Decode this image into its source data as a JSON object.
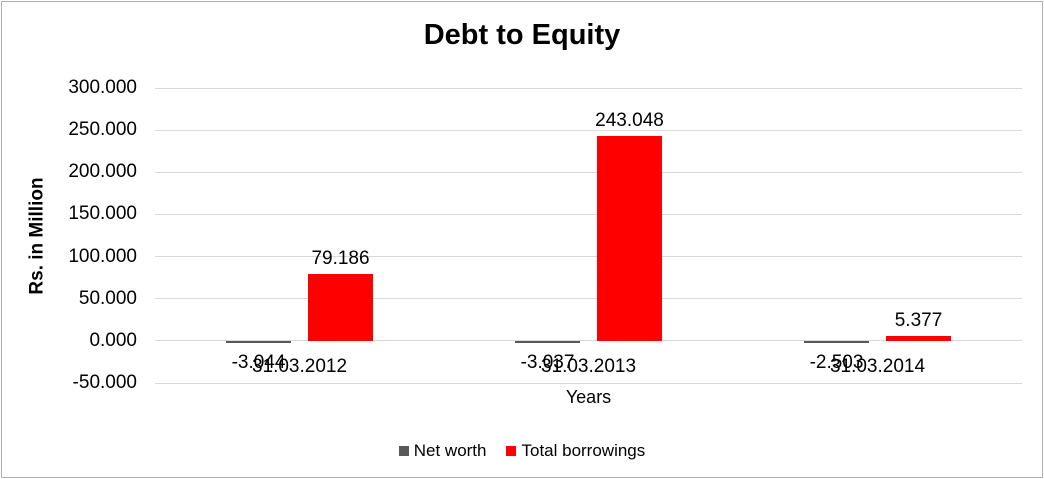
{
  "window": {
    "background": "#ffffff",
    "border_color": "#b0b0b0"
  },
  "chart_data": {
    "type": "bar",
    "title": "Debt to Equity",
    "xlabel": "Years",
    "ylabel": "Rs. in Million",
    "categories": [
      "31.03.2012",
      "31.03.2013",
      "31.03.2014"
    ],
    "series": [
      {
        "name": "Net worth",
        "color": "#595959",
        "values": [
          -3.044,
          -3.037,
          -2.503
        ],
        "labels": [
          "-3.044",
          "-3.037",
          "-2.503"
        ]
      },
      {
        "name": "Total borrowings",
        "color": "#ff0000",
        "values": [
          79.186,
          243.048,
          5.377
        ],
        "labels": [
          "79.186",
          "243.048",
          "5.377"
        ]
      }
    ],
    "ylim": [
      -50,
      300
    ],
    "yticks": [
      {
        "value": 300,
        "label": "300.000"
      },
      {
        "value": 250,
        "label": "250.000"
      },
      {
        "value": 200,
        "label": "200.000"
      },
      {
        "value": 150,
        "label": "150.000"
      },
      {
        "value": 100,
        "label": "100.000"
      },
      {
        "value": 50,
        "label": "50.000"
      },
      {
        "value": 0,
        "label": "0.000"
      },
      {
        "value": -50,
        "label": "-50.000"
      }
    ],
    "grid": true,
    "gridline_color": "#d9d9d9",
    "legend_position": "bottom",
    "data_labels_shown": true
  }
}
